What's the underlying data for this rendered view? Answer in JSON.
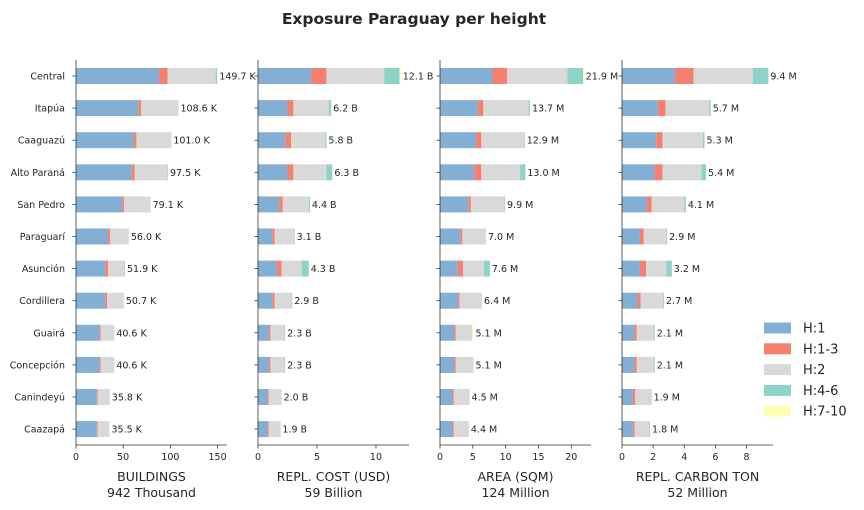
{
  "chart_data": {
    "type": "bar",
    "orientation": "horizontal",
    "stacked": true,
    "title": "Exposure Paraguay per height",
    "categories": [
      "Central",
      "Itapúa",
      "Caaguazú",
      "Alto Paraná",
      "San Pedro",
      "Paraguarí",
      "Asunción",
      "Cordillera",
      "Guairá",
      "Concepción",
      "Canindeyú",
      "Caazapá"
    ],
    "legend": {
      "placement": "right",
      "entries": [
        {
          "name": "H:1",
          "color": "#82afd3"
        },
        {
          "name": "H:1-3",
          "color": "#f5806e"
        },
        {
          "name": "H:2",
          "color": "#d9d9d9"
        },
        {
          "name": "H:4-6",
          "color": "#8dd3c7"
        },
        {
          "name": "H:7-10",
          "color": "#ffffb3"
        }
      ]
    },
    "panels": [
      {
        "xlabel": "BUILDINGS",
        "total_label": "942 Thousand",
        "xlim": [
          0,
          160
        ],
        "ticks": [
          "0",
          "50",
          "100",
          "150"
        ],
        "tick_values": [
          0,
          50,
          100,
          150
        ],
        "labels": [
          "149.7 K",
          "108.6 K",
          "101.0 K",
          "97.5 K",
          "79.1 K",
          "56.0 K",
          "51.9 K",
          "50.7 K",
          "40.6 K",
          "40.6 K",
          "35.8 K",
          "35.5 K"
        ],
        "series": [
          {
            "name": "H:1",
            "values": [
              88,
              66,
              61,
              59,
              49,
              34,
              31,
              31,
              25,
              25,
              22,
              22
            ]
          },
          {
            "name": "H:1-3",
            "values": [
              9,
              3,
              3,
              3,
              2,
              2,
              3,
              2,
              1,
              1,
              1,
              1
            ]
          },
          {
            "name": "H:2",
            "values": [
              51,
              39.6,
              37,
              35,
              28,
              20,
              17.4,
              17.7,
              14.6,
              14.6,
              12.8,
              12.5
            ]
          },
          {
            "name": "H:4-6",
            "values": [
              1.5,
              0,
              0,
              0.5,
              0.1,
              0,
              0.5,
              0,
              0,
              0,
              0,
              0
            ]
          },
          {
            "name": "H:7-10",
            "values": [
              0.2,
              0,
              0,
              0,
              0,
              0,
              0,
              0,
              0,
              0,
              0,
              0
            ]
          }
        ]
      },
      {
        "xlabel": "REPL. COST (USD)",
        "total_label": "59 Billion",
        "xlim": [
          0,
          12.8
        ],
        "ticks": [
          "0",
          "5",
          "10"
        ],
        "tick_values": [
          0,
          5,
          10
        ],
        "labels": [
          "12.1 B",
          "6.2 B",
          "5.8 B",
          "6.3 B",
          "4.4 B",
          "3.1 B",
          "4.3 B",
          "2.9 B",
          "2.3 B",
          "2.3 B",
          "2.0 B",
          "1.9 B"
        ],
        "series": [
          {
            "name": "H:1",
            "values": [
              4.5,
              2.5,
              2.3,
              2.5,
              1.8,
              1.2,
              1.6,
              1.2,
              0.9,
              0.9,
              0.8,
              0.8
            ]
          },
          {
            "name": "H:1-3",
            "values": [
              1.3,
              0.5,
              0.5,
              0.5,
              0.3,
              0.2,
              0.4,
              0.2,
              0.15,
              0.15,
              0.1,
              0.1
            ]
          },
          {
            "name": "H:2",
            "values": [
              4.9,
              3.0,
              2.9,
              2.8,
              2.2,
              1.65,
              1.7,
              1.45,
              1.2,
              1.2,
              1.1,
              0.95
            ]
          },
          {
            "name": "H:4-6",
            "values": [
              1.3,
              0.2,
              0.1,
              0.5,
              0.1,
              0.05,
              0.6,
              0.05,
              0.05,
              0.05,
              0,
              0.05
            ]
          },
          {
            "name": "H:7-10",
            "values": [
              0.1,
              0,
              0,
              0,
              0,
              0,
              0,
              0,
              0,
              0,
              0,
              0
            ]
          }
        ]
      },
      {
        "xlabel": "AREA (SQM)",
        "total_label": "124 Million",
        "xlim": [
          0,
          23
        ],
        "ticks": [
          "0",
          "5",
          "10",
          "15",
          "20"
        ],
        "tick_values": [
          0,
          5,
          10,
          15,
          20
        ],
        "labels": [
          "21.9 M",
          "13.7 M",
          "12.9 M",
          "13.0 M",
          "9.9 M",
          "7.0 M",
          "7.6 M",
          "6.4 M",
          "5.1 M",
          "5.1 M",
          "4.5 M",
          "4.4 M"
        ],
        "series": [
          {
            "name": "H:1",
            "values": [
              8,
              5.8,
              5.5,
              5.2,
              4.3,
              3.1,
              2.7,
              2.8,
              2.2,
              2.2,
              1.9,
              1.9
            ]
          },
          {
            "name": "H:1-3",
            "values": [
              2.2,
              0.8,
              0.8,
              1.1,
              0.4,
              0.3,
              0.8,
              0.2,
              0.2,
              0.2,
              0.2,
              0.2
            ]
          },
          {
            "name": "H:2",
            "values": [
              9.2,
              6.9,
              6.5,
              5.9,
              5.1,
              3.6,
              3.2,
              3.4,
              2.5,
              2.7,
              2.4,
              2.3
            ]
          },
          {
            "name": "H:4-6",
            "values": [
              2.4,
              0.2,
              0.1,
              0.8,
              0.1,
              0,
              0.9,
              0,
              0,
              0,
              0,
              0
            ]
          },
          {
            "name": "H:7-10",
            "values": [
              0.1,
              0,
              0,
              0,
              0,
              0,
              0,
              0,
              0.2,
              0,
              0,
              0
            ]
          }
        ]
      },
      {
        "xlabel": "REPL. CARBON TON",
        "total_label": "52 Million",
        "xlim": [
          0,
          9.7
        ],
        "ticks": [
          "0",
          "2",
          "4",
          "6",
          "8"
        ],
        "tick_values": [
          0,
          2,
          4,
          6,
          8
        ],
        "labels": [
          "9.4 M",
          "5.7 M",
          "5.3 M",
          "5.4 M",
          "4.1 M",
          "2.9 M",
          "3.2 M",
          "2.7 M",
          "2.1 M",
          "2.1 M",
          "1.9 M",
          "1.8 M"
        ],
        "series": [
          {
            "name": "H:1",
            "values": [
              3.4,
              2.3,
              2.2,
              2.1,
              1.6,
              1.15,
              1.15,
              1.0,
              0.8,
              0.8,
              0.7,
              0.7
            ]
          },
          {
            "name": "H:1-3",
            "values": [
              1.2,
              0.5,
              0.4,
              0.5,
              0.3,
              0.25,
              0.4,
              0.2,
              0.15,
              0.15,
              0.15,
              0.1
            ]
          },
          {
            "name": "H:2",
            "values": [
              3.8,
              2.8,
              2.6,
              2.5,
              2.1,
              1.45,
              1.3,
              1.45,
              1.1,
              1.1,
              1.0,
              0.95
            ]
          },
          {
            "name": "H:4-6",
            "values": [
              1.0,
              0.1,
              0.1,
              0.3,
              0.1,
              0.05,
              0.35,
              0.05,
              0.05,
              0.05,
              0.05,
              0.05
            ]
          },
          {
            "name": "H:7-10",
            "values": [
              0,
              0,
              0,
              0,
              0,
              0,
              0,
              0,
              0,
              0,
              0,
              0
            ]
          }
        ]
      }
    ]
  }
}
